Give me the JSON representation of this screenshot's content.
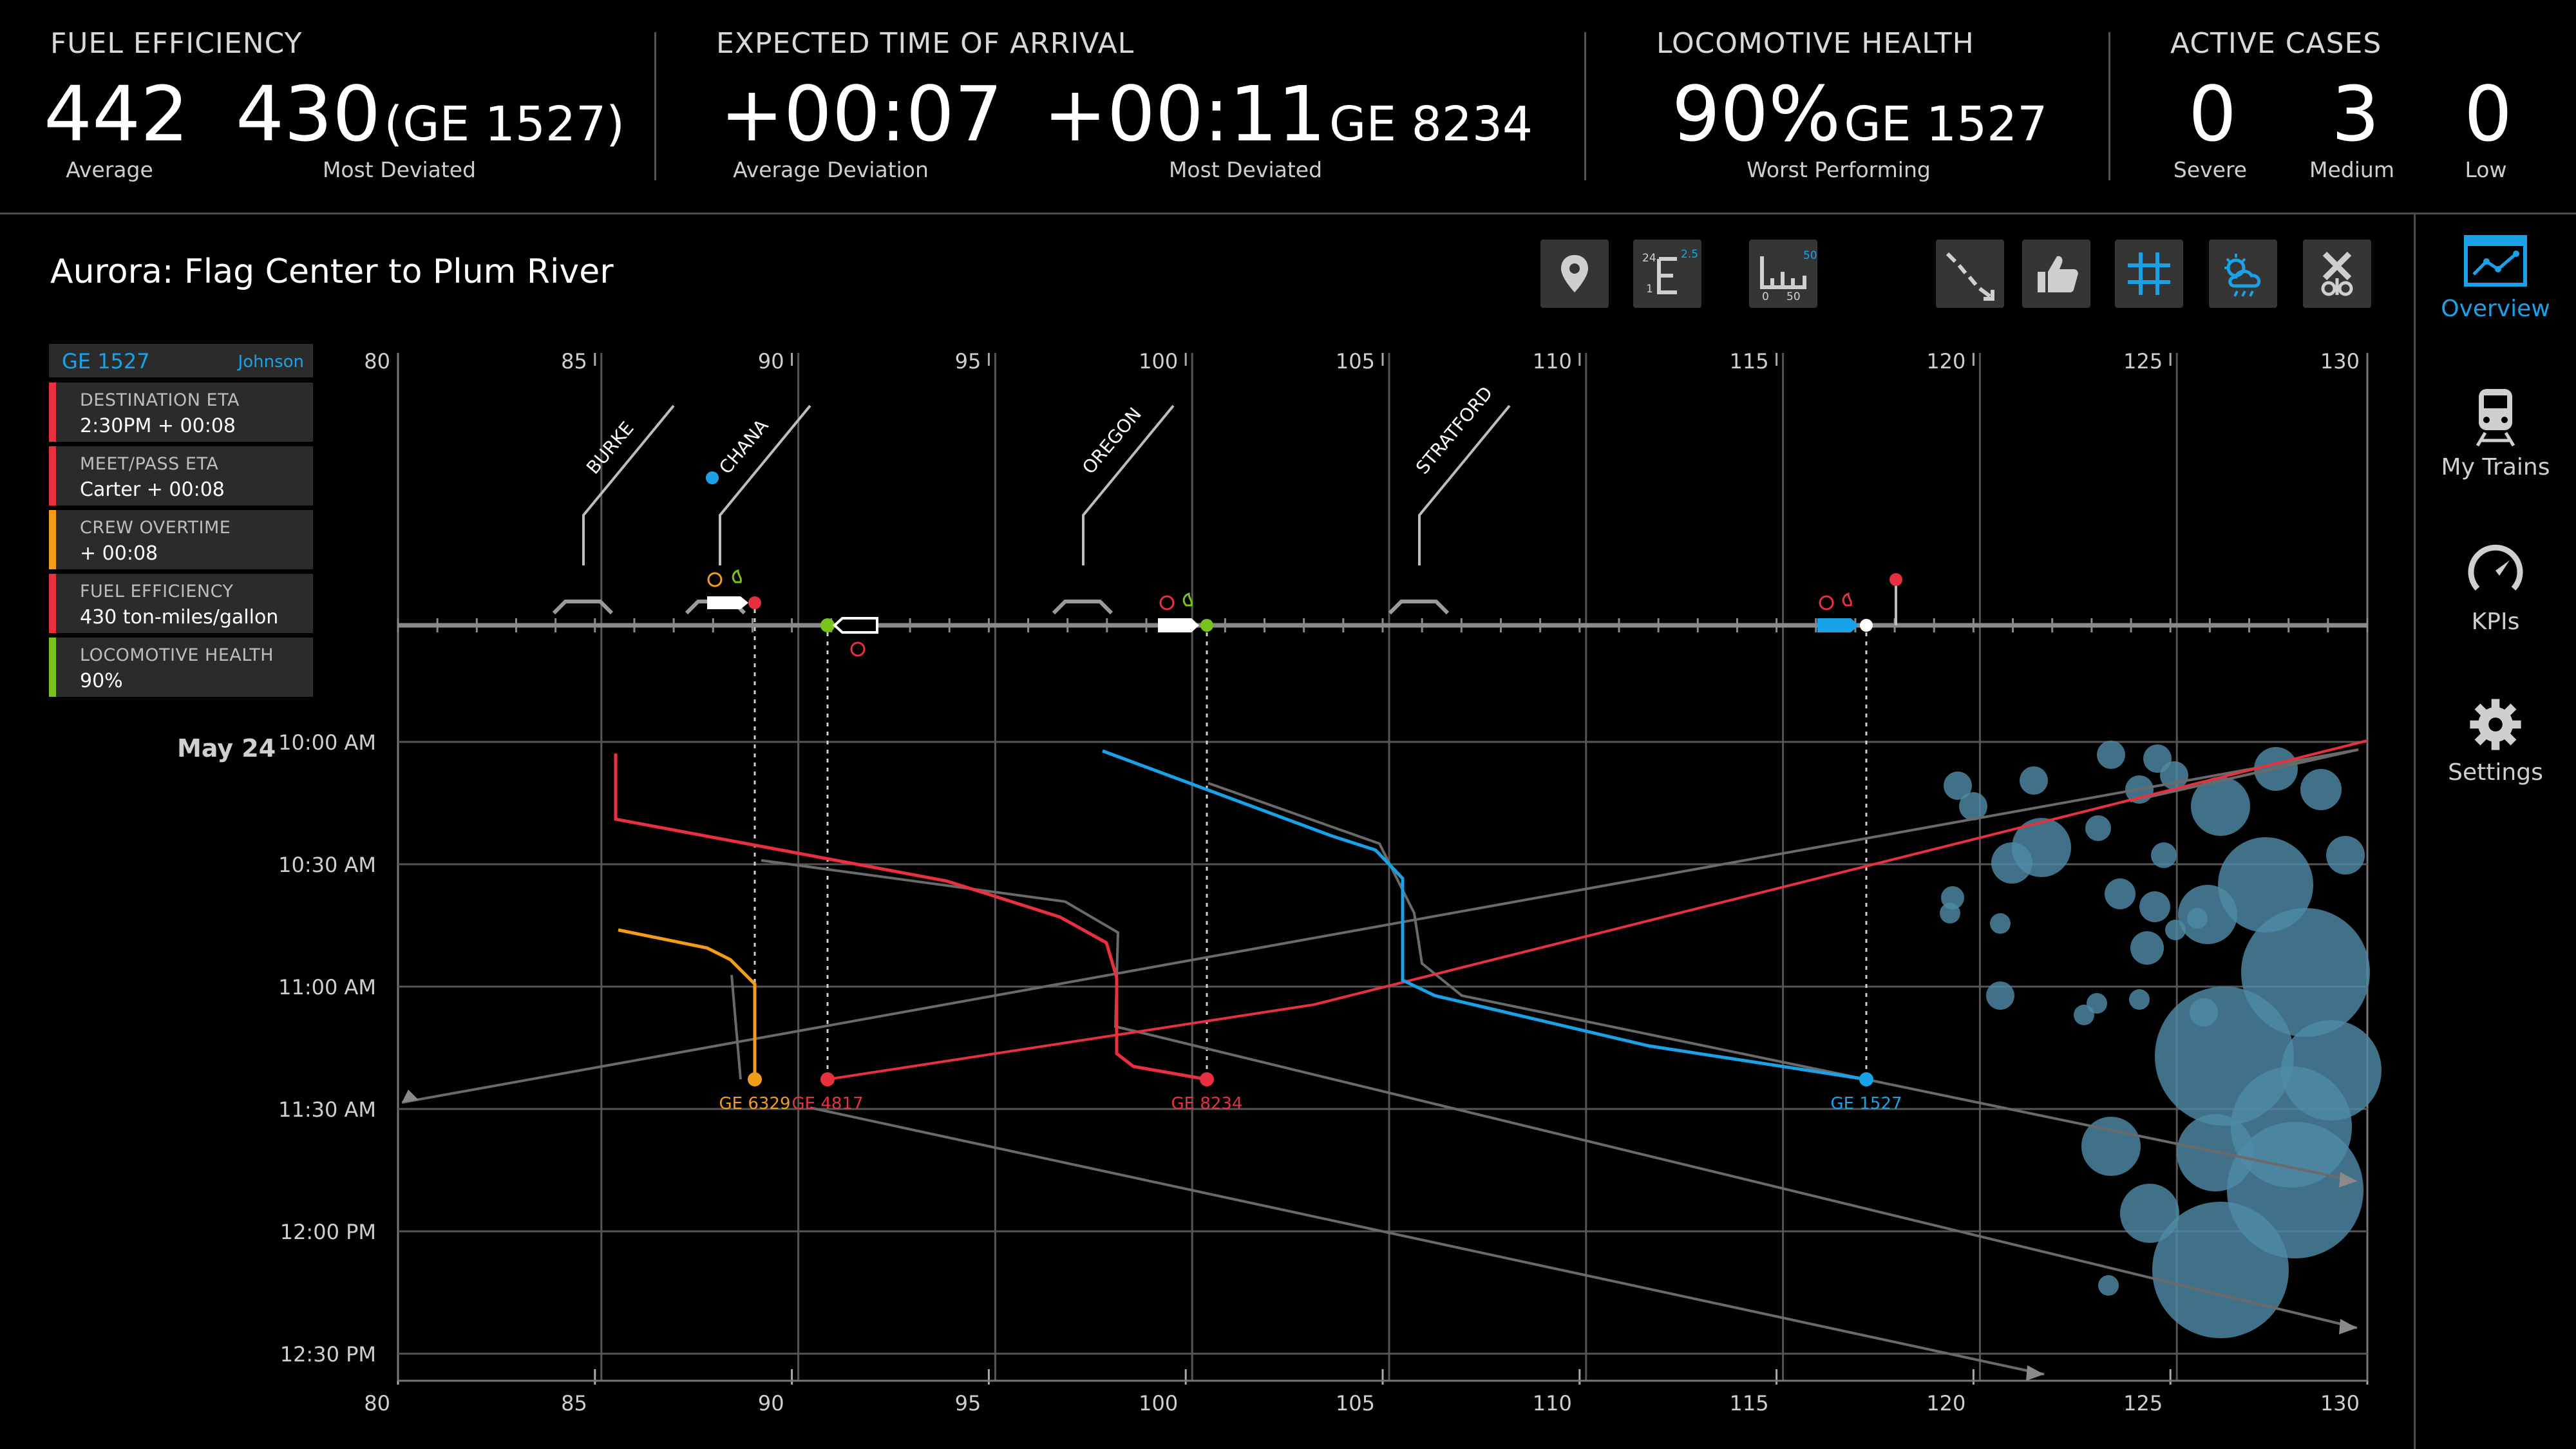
{
  "header": {
    "fuel": {
      "title": "FUEL EFFICIENCY",
      "avg_value": "442",
      "avg_label": "Average",
      "dev_value": "430",
      "dev_train": "(GE 1527)",
      "dev_label": "Most Deviated"
    },
    "eta": {
      "title": "EXPECTED TIME OF ARRIVAL",
      "avg_value": "+00:07",
      "avg_label": "Average Deviation",
      "dev_value": "+00:11",
      "dev_train": "GE 8234",
      "dev_label": "Most Deviated"
    },
    "health": {
      "title": "LOCOMOTIVE HEALTH",
      "value": "90%",
      "train": "GE 1527",
      "label": "Worst Performing"
    },
    "cases": {
      "title": "ACTIVE CASES",
      "severe_value": "0",
      "severe_label": "Severe",
      "medium_value": "3",
      "medium_label": "Medium",
      "low_value": "0",
      "low_label": "Low"
    }
  },
  "route": {
    "title": "Aurora: Flag Center to Plum River"
  },
  "toolbar": [
    {
      "name": "location-pin-icon"
    },
    {
      "name": "elevation-scale-icon",
      "top": "2.5",
      "left_top": "24",
      "left_bottom": "1"
    },
    {
      "name": "bar-scale-icon",
      "top": "50",
      "left": "0",
      "right": "50"
    },
    {
      "name": "trajectory-icon"
    },
    {
      "name": "thumbs-up-icon"
    },
    {
      "name": "grid-icon",
      "active": true
    },
    {
      "name": "weather-icon",
      "active": true
    },
    {
      "name": "crossing-icon"
    }
  ],
  "train_panel": {
    "train": "GE 1527",
    "crew": "Johnson",
    "rows": [
      {
        "label": "DESTINATION ETA",
        "value": "2:30PM  + 00:08",
        "color": "#e8303f"
      },
      {
        "label": "MEET/PASS ETA",
        "value": "Carter + 00:08",
        "color": "#e8303f"
      },
      {
        "label": "CREW OVERTIME",
        "value": "+ 00:08",
        "color": "#f39c1a"
      },
      {
        "label": "FUEL EFFICIENCY",
        "value": "430 ton-miles/gallon",
        "color": "#e8303f"
      },
      {
        "label": "LOCOMOTIVE HEALTH",
        "value": "90%",
        "color": "#7ac21c"
      }
    ]
  },
  "chart_data": {
    "type": "line",
    "date_label": "May 24",
    "x_ticks": [
      "80",
      "85",
      "90",
      "95",
      "100",
      "105",
      "110",
      "115",
      "120",
      "125",
      "130"
    ],
    "x_range": [
      80,
      130
    ],
    "y_ticks": [
      "10:00 AM",
      "10:30 AM",
      "11:00 AM",
      "11:30 AM",
      "12:00 PM",
      "12:30 PM"
    ],
    "y_range_minutes": [
      0,
      160
    ],
    "stations": [
      "BURKE",
      "CHANA",
      "OREGON",
      "STRATFORD"
    ],
    "trains": [
      {
        "name": "GE 6329",
        "color": "#f39c1a",
        "points": [
          [
            85.6,
            46
          ],
          [
            88,
            52
          ],
          [
            89.2,
            60
          ],
          [
            89.2,
            81
          ]
        ]
      },
      {
        "name": "GE 4817",
        "color": "#e8303f",
        "points": [
          [
            85.6,
            2
          ],
          [
            85.6,
            18
          ],
          [
            99,
            36
          ],
          [
            98.5,
            67
          ],
          [
            99,
            80
          ],
          [
            91,
            81
          ],
          [
            104,
            62
          ],
          [
            130,
            0
          ]
        ]
      },
      {
        "name": "GE 8234",
        "color": "#e8303f",
        "points": [
          [
            85.6,
            18
          ],
          [
            96,
            34
          ],
          [
            98.5,
            46
          ],
          [
            98.5,
            74
          ],
          [
            100.5,
            80
          ],
          [
            101,
            81
          ]
        ]
      },
      {
        "name": "GE 1527",
        "color": "#1aa2e8",
        "points": [
          [
            98.7,
            2
          ],
          [
            105,
            25
          ],
          [
            105.6,
            30
          ],
          [
            105.6,
            58
          ],
          [
            109,
            64
          ],
          [
            113,
            74
          ],
          [
            117.6,
            81
          ]
        ]
      }
    ]
  },
  "nav": {
    "items": [
      {
        "label": "Overview",
        "icon": "overview-icon",
        "active": true
      },
      {
        "label": "My Trains",
        "icon": "train-icon"
      },
      {
        "label": "KPIs",
        "icon": "gauge-icon"
      },
      {
        "label": "Settings",
        "icon": "gear-icon"
      }
    ]
  },
  "colors": {
    "accent": "#1aa2e8",
    "red": "#e8303f",
    "orange": "#f39c1a",
    "green": "#7ac21c",
    "bubble": "#4f8aa6"
  }
}
